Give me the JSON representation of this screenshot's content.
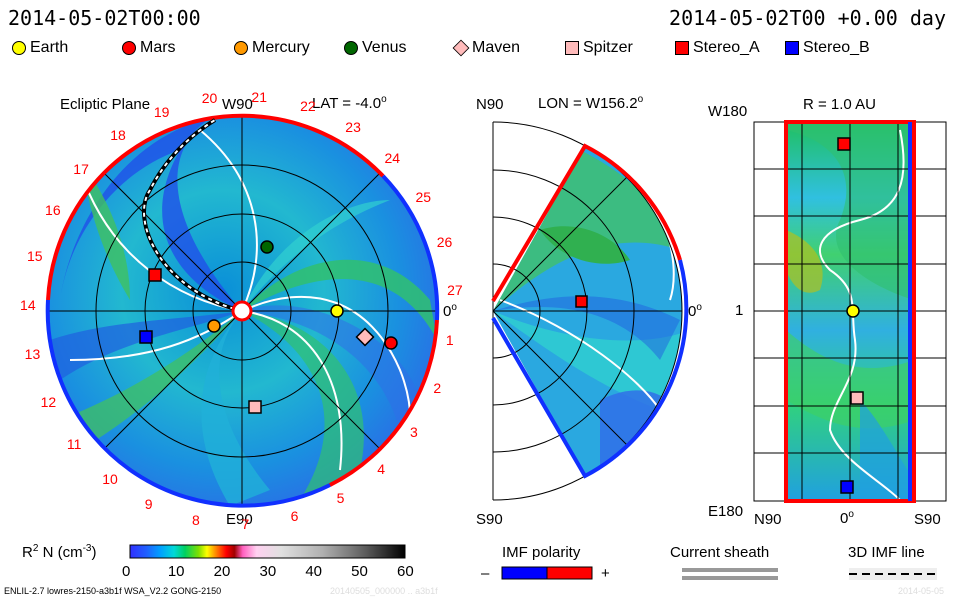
{
  "header": {
    "datetime_left": "2014-05-02T00:00",
    "datetime_right": "2014-05-02T00 +0.00 day"
  },
  "legend": [
    {
      "label": "Earth",
      "shape": "circle",
      "color": "#ffff00"
    },
    {
      "label": "Mars",
      "shape": "circle",
      "color": "#ff0000"
    },
    {
      "label": "Mercury",
      "shape": "circle",
      "color": "#ff9900"
    },
    {
      "label": "Venus",
      "shape": "circle",
      "color": "#006600"
    },
    {
      "label": "Maven",
      "shape": "diamond",
      "color": "#ffbbbb"
    },
    {
      "label": "Spitzer",
      "shape": "square",
      "color": "#ffbbbb"
    },
    {
      "label": "Stereo_A",
      "shape": "square",
      "color": "#ff0000"
    },
    {
      "label": "Stereo_B",
      "shape": "square",
      "color": "#0000ff"
    }
  ],
  "panels": {
    "ecliptic": {
      "title": "Ecliptic Plane",
      "top_label": "W90",
      "lat_label": "LAT = -4.0",
      "lat_deg_symbol": "o",
      "right_label": "0",
      "right_deg_symbol": "o",
      "bottom_label": "E90",
      "carrington_numbers": [
        "1",
        "2",
        "3",
        "4",
        "5",
        "6",
        "7",
        "8",
        "9",
        "10",
        "11",
        "12",
        "13",
        "14",
        "15",
        "16",
        "17",
        "18",
        "19",
        "20",
        "21",
        "22",
        "23",
        "24",
        "25",
        "26",
        "27"
      ]
    },
    "meridional": {
      "top_label": "N90",
      "lon_label": "LON = W156.2",
      "lon_deg_symbol": "o",
      "right_label": "0",
      "right_deg_symbol": "o",
      "bottom_label": "S90"
    },
    "radial": {
      "title": "R = 1.0 AU",
      "top_left_label": "W180",
      "mid_left_label": "1",
      "bottom_left_label": "E180",
      "bottom_labels": [
        "N90",
        "0",
        "S90"
      ],
      "bottom_mid_deg_symbol": "o"
    }
  },
  "colorbar": {
    "label": "R",
    "label_sup": "2",
    "label_rest": " N (cm",
    "label_sup2": "-3",
    "label_end": ")",
    "ticks": [
      "0",
      "10",
      "20",
      "30",
      "40",
      "50",
      "60"
    ]
  },
  "imf_polarity": {
    "title": "IMF polarity",
    "minus": "–",
    "plus": "+",
    "neg_color": "#0000ff",
    "pos_color": "#ff0000"
  },
  "current_sheath": {
    "title": "Current sheath"
  },
  "imf_line": {
    "title": "3D IMF line"
  },
  "footer": {
    "left": "ENLIL-2.7 lowres-2150-a3b1f WSA_V2.2 GONG-2150",
    "right": "20140505_000000 .. a3b1f",
    "far_right": "2014-05-05"
  }
}
